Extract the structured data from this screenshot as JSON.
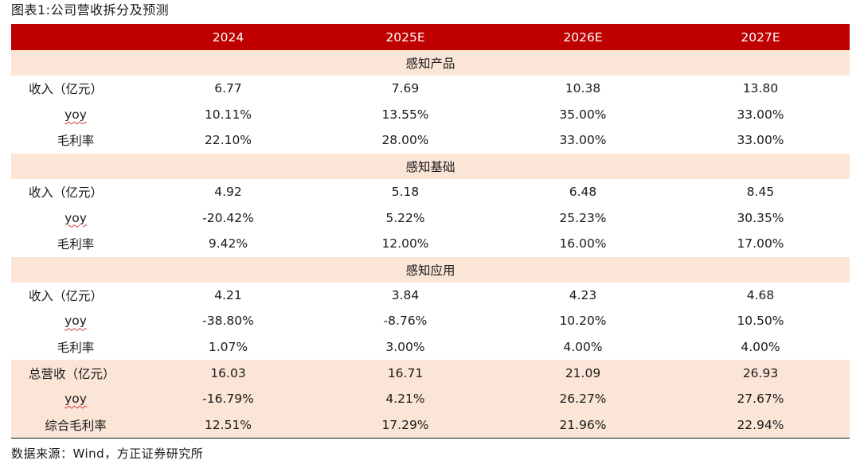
{
  "title": "图表1:公司营收拆分及预测",
  "header": [
    "",
    "2024",
    "2025E",
    "2026E",
    "2027E"
  ],
  "sections": [
    {
      "name": "感知产品",
      "rows": [
        {
          "label": "收入（亿元）",
          "values": [
            "6.77",
            "7.69",
            "10.38",
            "13.80"
          ]
        },
        {
          "label": "yoy",
          "values": [
            "10.11%",
            "13.55%",
            "35.00%",
            "33.00%"
          ]
        },
        {
          "label": "毛利率",
          "values": [
            "22.10%",
            "28.00%",
            "33.00%",
            "33.00%"
          ]
        }
      ]
    },
    {
      "name": "感知基础",
      "rows": [
        {
          "label": "收入（亿元）",
          "values": [
            "4.92",
            "5.18",
            "6.48",
            "8.45"
          ]
        },
        {
          "label": "yoy",
          "values": [
            "-20.42%",
            "5.22%",
            "25.23%",
            "30.35%"
          ]
        },
        {
          "label": "毛利率",
          "values": [
            "9.42%",
            "12.00%",
            "16.00%",
            "17.00%"
          ]
        }
      ]
    },
    {
      "name": "感知应用",
      "rows": [
        {
          "label": "收入（亿元）",
          "values": [
            "4.21",
            "3.84",
            "4.23",
            "4.68"
          ]
        },
        {
          "label": "yoy",
          "values": [
            "-38.80%",
            "-8.76%",
            "10.20%",
            "10.50%"
          ]
        },
        {
          "label": "毛利率",
          "values": [
            "1.07%",
            "3.00%",
            "4.00%",
            "4.00%"
          ]
        }
      ]
    }
  ],
  "totals": [
    {
      "label": "总营收（亿元）",
      "values": [
        "16.03",
        "16.71",
        "21.09",
        "26.93"
      ]
    },
    {
      "label": "yoy",
      "values": [
        "-16.79%",
        "4.21%",
        "26.27%",
        "27.67%"
      ]
    },
    {
      "label": "综合毛利率",
      "values": [
        "12.51%",
        "17.29%",
        "21.96%",
        "22.94%"
      ]
    }
  ],
  "source": "数据来源：Wind，方正证券研究所"
}
